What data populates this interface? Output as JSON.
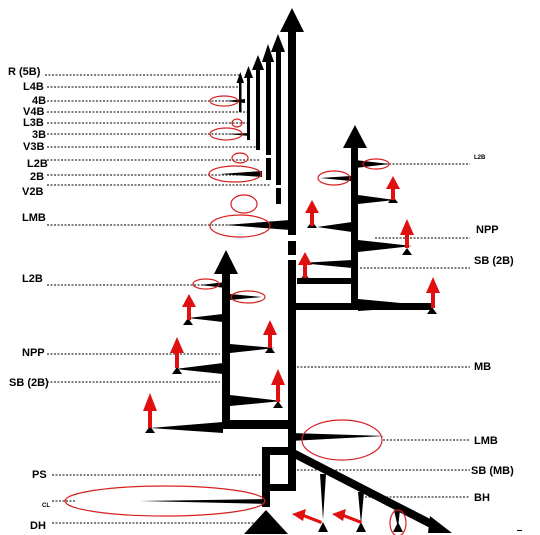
{
  "labels_left": {
    "r5b": "R (5B)",
    "l4b": "L4B",
    "b4": "4B",
    "v4b": "V4B",
    "l3b": "L3B",
    "b3": "3B",
    "v3b": "V3B",
    "l2b_top": "L2B",
    "b2": "2B",
    "v2b": "V2B",
    "lmb": "LMB",
    "l2b_mid": "L2B",
    "npp": "NPP",
    "sb2b": "SB (2B)",
    "ps": "PS",
    "cl": "CL",
    "dh": "DH"
  },
  "labels_right": {
    "l2b_small": "L2B",
    "npp": "NPP",
    "sb2b": "SB (2B)",
    "mb": "MB",
    "lmb": "LMB",
    "sbmb": "SB (MB)",
    "bh": "BH"
  },
  "colors": {
    "ink": "#000000",
    "highlight": "#d62020",
    "arrow": "#e01010"
  }
}
